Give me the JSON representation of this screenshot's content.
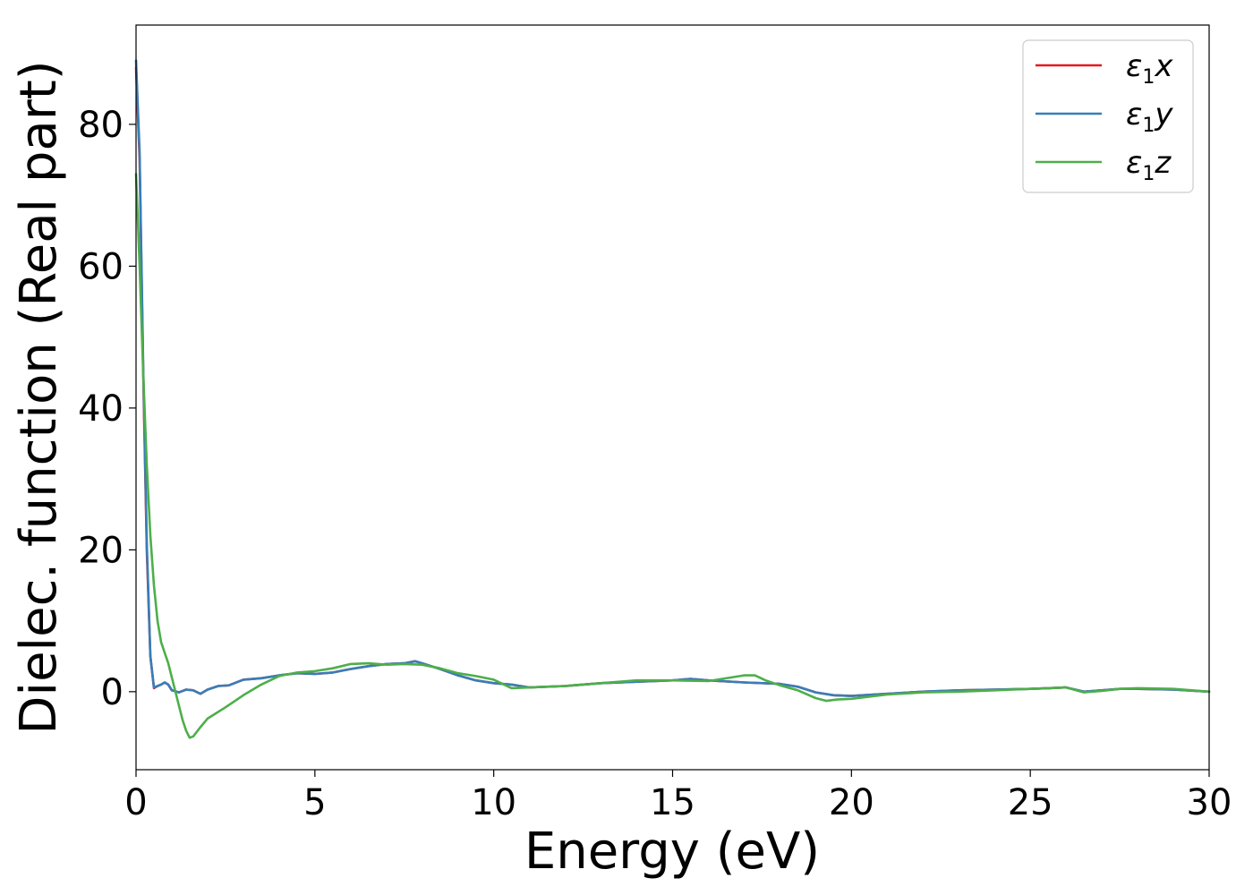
{
  "chart_data": {
    "type": "line",
    "title": "",
    "xlabel": "Energy (eV)",
    "ylabel": "Dielec. function (Real part)",
    "xlim": [
      0,
      30
    ],
    "ylim": [
      -11,
      94
    ],
    "xticks": [
      0,
      5,
      10,
      15,
      20,
      25,
      30
    ],
    "yticks": [
      0,
      20,
      40,
      60,
      80
    ],
    "grid": false,
    "legend_position": "top-right",
    "legend": [
      {
        "symbol": "ε",
        "sub": "1",
        "var": "x"
      },
      {
        "symbol": "ε",
        "sub": "1",
        "var": "y"
      },
      {
        "symbol": "ε",
        "sub": "1",
        "var": "z"
      }
    ],
    "series": [
      {
        "name": "ε1x",
        "color": "#e41a1c",
        "x": [
          0.0,
          0.1,
          0.2,
          0.3,
          0.4,
          0.5,
          0.6,
          0.7,
          0.8,
          0.9,
          1.0,
          1.2,
          1.4,
          1.6,
          1.8,
          2.0,
          2.3,
          2.6,
          3.0,
          3.5,
          4.0,
          4.5,
          5.0,
          5.5,
          6.0,
          6.5,
          7.0,
          7.5,
          7.8,
          8.0,
          8.5,
          9.0,
          9.5,
          10.0,
          10.5,
          11.0,
          12.0,
          13.0,
          14.0,
          15.0,
          15.5,
          16.0,
          17.0,
          18.0,
          18.5,
          19.0,
          19.5,
          20.0,
          21.0,
          22.0,
          23.0,
          24.0,
          25.0,
          25.5,
          26.0,
          26.5,
          27.0,
          27.5,
          28.0,
          29.0,
          30.0
        ],
        "y": [
          88,
          75,
          45,
          20,
          5,
          0.5,
          0.8,
          1.0,
          1.3,
          1.0,
          0.2,
          -0.1,
          0.3,
          0.2,
          -0.3,
          0.3,
          0.8,
          0.9,
          1.7,
          1.9,
          2.3,
          2.6,
          2.5,
          2.7,
          3.2,
          3.6,
          3.9,
          4.0,
          4.3,
          4.0,
          3.2,
          2.3,
          1.6,
          1.2,
          1.0,
          0.6,
          0.8,
          1.2,
          1.4,
          1.6,
          1.8,
          1.6,
          1.3,
          1.1,
          0.7,
          -0.1,
          -0.5,
          -0.6,
          -0.3,
          0.0,
          0.2,
          0.3,
          0.4,
          0.5,
          0.6,
          0.0,
          0.2,
          0.4,
          0.4,
          0.3,
          0.0
        ]
      },
      {
        "name": "ε1y",
        "color": "#377eb8",
        "x": [
          0.0,
          0.1,
          0.2,
          0.3,
          0.4,
          0.5,
          0.6,
          0.7,
          0.8,
          0.9,
          1.0,
          1.2,
          1.4,
          1.6,
          1.8,
          2.0,
          2.3,
          2.6,
          3.0,
          3.5,
          4.0,
          4.5,
          5.0,
          5.5,
          6.0,
          6.5,
          7.0,
          7.5,
          7.8,
          8.0,
          8.5,
          9.0,
          9.5,
          10.0,
          10.5,
          11.0,
          12.0,
          13.0,
          14.0,
          15.0,
          15.5,
          16.0,
          17.0,
          18.0,
          18.5,
          19.0,
          19.5,
          20.0,
          21.0,
          22.0,
          23.0,
          24.0,
          25.0,
          25.5,
          26.0,
          26.5,
          27.0,
          27.5,
          28.0,
          29.0,
          30.0
        ],
        "y": [
          89,
          76,
          46,
          21,
          5,
          0.6,
          0.8,
          1.0,
          1.3,
          1.0,
          0.2,
          -0.1,
          0.3,
          0.2,
          -0.3,
          0.3,
          0.8,
          0.9,
          1.7,
          1.9,
          2.3,
          2.6,
          2.5,
          2.7,
          3.2,
          3.6,
          3.9,
          4.0,
          4.3,
          4.0,
          3.2,
          2.3,
          1.6,
          1.2,
          1.0,
          0.6,
          0.8,
          1.2,
          1.4,
          1.6,
          1.8,
          1.6,
          1.3,
          1.1,
          0.7,
          -0.1,
          -0.5,
          -0.6,
          -0.3,
          0.0,
          0.2,
          0.3,
          0.4,
          0.5,
          0.6,
          0.0,
          0.2,
          0.4,
          0.4,
          0.3,
          0.0
        ]
      },
      {
        "name": "ε1z",
        "color": "#4daf4a",
        "x": [
          0.0,
          0.1,
          0.2,
          0.3,
          0.4,
          0.5,
          0.6,
          0.7,
          0.8,
          0.9,
          1.0,
          1.1,
          1.2,
          1.3,
          1.4,
          1.5,
          1.6,
          1.8,
          2.0,
          2.5,
          3.0,
          3.5,
          4.0,
          4.5,
          5.0,
          5.5,
          6.0,
          6.5,
          7.0,
          7.5,
          8.0,
          8.5,
          9.0,
          9.5,
          10.0,
          10.5,
          11.0,
          12.0,
          13.0,
          14.0,
          15.0,
          16.0,
          17.0,
          17.3,
          17.6,
          18.0,
          18.5,
          19.0,
          19.3,
          19.6,
          20.0,
          21.0,
          22.0,
          23.0,
          24.0,
          25.0,
          25.5,
          26.0,
          26.5,
          27.0,
          27.5,
          28.0,
          29.0,
          30.0
        ],
        "y": [
          73,
          60,
          45,
          32,
          22,
          15,
          10,
          7,
          5.5,
          4,
          2,
          0,
          -2,
          -4,
          -5.5,
          -6.5,
          -6.3,
          -5,
          -3.8,
          -2.2,
          -0.5,
          1.0,
          2.2,
          2.7,
          2.9,
          3.3,
          3.9,
          4.0,
          3.8,
          3.9,
          3.8,
          3.3,
          2.6,
          2.2,
          1.7,
          0.5,
          0.6,
          0.8,
          1.2,
          1.6,
          1.6,
          1.5,
          2.3,
          2.3,
          1.6,
          0.9,
          0.2,
          -0.9,
          -1.3,
          -1.1,
          -1.0,
          -0.4,
          -0.1,
          0.0,
          0.2,
          0.4,
          0.5,
          0.6,
          -0.1,
          0.1,
          0.4,
          0.5,
          0.4,
          0.0
        ]
      }
    ]
  }
}
